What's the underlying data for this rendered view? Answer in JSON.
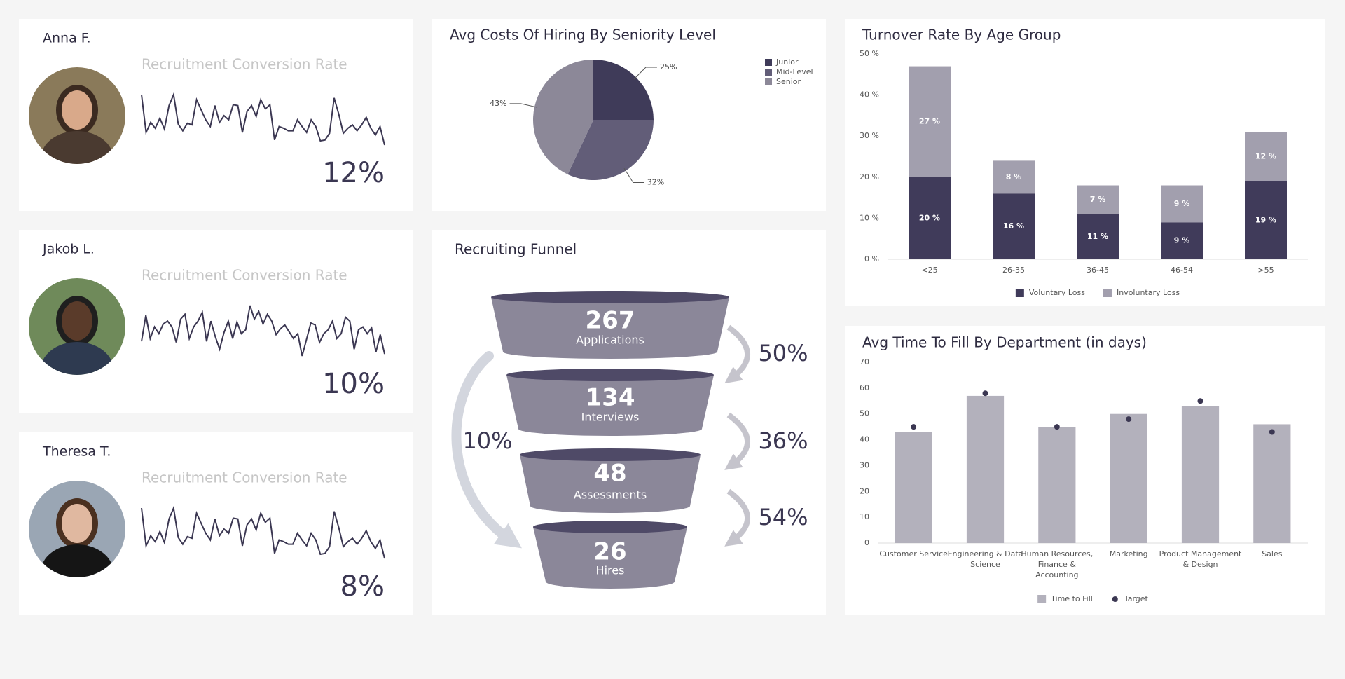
{
  "people": [
    {
      "name": "Anna F.",
      "metric": "Recruitment Conversion Rate",
      "rate": "12%",
      "sparkline": [
        60,
        15,
        27,
        20,
        32,
        19,
        47,
        60,
        25,
        17,
        26,
        24,
        54,
        42,
        30,
        22,
        47,
        27,
        35,
        30,
        48,
        47,
        15,
        40,
        47,
        34,
        54,
        43,
        48,
        6,
        22,
        20,
        17,
        17,
        30,
        22,
        15,
        30,
        22,
        5,
        6,
        14,
        56,
        37,
        14,
        20,
        24,
        17,
        24,
        33,
        20,
        12,
        22,
        0
      ]
    },
    {
      "name": "Jakob L.",
      "metric": "Recruitment Conversion Rate",
      "rate": "10%",
      "sparkline": [
        17,
        44,
        20,
        32,
        25,
        35,
        38,
        32,
        16,
        40,
        45,
        20,
        32,
        38,
        47,
        17,
        38,
        22,
        9,
        26,
        38,
        20,
        37,
        25,
        29,
        54,
        40,
        48,
        35,
        45,
        38,
        24,
        30,
        34,
        27,
        20,
        25,
        2,
        19,
        36,
        34,
        16,
        25,
        29,
        38,
        20,
        25,
        42,
        38,
        9,
        29,
        32,
        25,
        31,
        6,
        24,
        4
      ]
    },
    {
      "name": "Theresa T.",
      "metric": "Recruitment Conversion Rate",
      "rate": "8%",
      "sparkline": [
        60,
        15,
        27,
        20,
        32,
        19,
        47,
        60,
        25,
        17,
        26,
        24,
        54,
        42,
        30,
        22,
        47,
        27,
        35,
        30,
        48,
        47,
        15,
        40,
        47,
        34,
        54,
        43,
        48,
        6,
        22,
        20,
        17,
        17,
        30,
        22,
        15,
        30,
        22,
        5,
        6,
        14,
        56,
        37,
        14,
        20,
        24,
        17,
        24,
        33,
        20,
        12,
        22,
        0
      ]
    }
  ],
  "chart_data": [
    {
      "type": "pie",
      "title": "Avg Costs Of Hiring By Seniority Level",
      "categories": [
        "Junior",
        "Mid-Level",
        "Senior"
      ],
      "values": [
        25,
        32,
        43
      ],
      "value_labels": [
        "25%",
        "32%",
        "43%"
      ],
      "colors": [
        "#3f3b59",
        "#625d78",
        "#8c8898"
      ],
      "legend": "top-right"
    },
    {
      "type": "bar",
      "stacked": true,
      "title": "Turnover Rate By Age Group",
      "categories": [
        "<25",
        "26-35",
        "36-45",
        "46-54",
        ">55"
      ],
      "series": [
        {
          "name": "Voluntary Loss",
          "color": "#403b5a",
          "values": [
            20,
            16,
            11,
            9,
            19
          ],
          "value_labels": [
            "20 %",
            "16 %",
            "11 %",
            "9 %",
            "19 %"
          ]
        },
        {
          "name": "Involuntary Loss",
          "color": "#a29fae",
          "values": [
            27,
            8,
            7,
            9,
            12
          ],
          "value_labels": [
            "27 %",
            "8 %",
            "7 %",
            "9 %",
            "12 %"
          ]
        }
      ],
      "ylim": [
        0,
        50
      ],
      "yticks": [
        {
          "value": 0,
          "label": "0 %"
        },
        {
          "value": 10,
          "label": "10 %"
        },
        {
          "value": 20,
          "label": "20 %"
        },
        {
          "value": 30,
          "label": "30 %"
        },
        {
          "value": 40,
          "label": "40 %"
        },
        {
          "value": 50,
          "label": "50 %"
        }
      ],
      "legend": "bottom"
    },
    {
      "type": "bar",
      "title": "Avg Time To Fill By Department (in days)",
      "categories": [
        "Customer Service",
        "Engineering & Data Science",
        "Human Resources, Finance & Accounting",
        "Marketing",
        "Product Management & Design",
        "Sales"
      ],
      "series": [
        {
          "name": "Time to Fill",
          "color": "#b3b1bc",
          "values": [
            43,
            57,
            45,
            50,
            53,
            46
          ]
        },
        {
          "name": "Target",
          "type": "scatter",
          "color": "#3b3752",
          "values": [
            45,
            58,
            45,
            48,
            55,
            43
          ]
        }
      ],
      "ylim": [
        0,
        70
      ],
      "yticks": [
        0,
        10,
        20,
        30,
        40,
        50,
        60,
        70
      ],
      "legend": "bottom"
    }
  ],
  "funnel": {
    "title": "Recruiting Funnel",
    "stages": [
      {
        "count": 267,
        "label": "Applications"
      },
      {
        "count": 134,
        "label": "Interviews"
      },
      {
        "count": 48,
        "label": "Assessments"
      },
      {
        "count": 26,
        "label": "Hires"
      }
    ],
    "conversions": [
      "50%",
      "36%",
      "54%"
    ],
    "overall": "10%"
  }
}
